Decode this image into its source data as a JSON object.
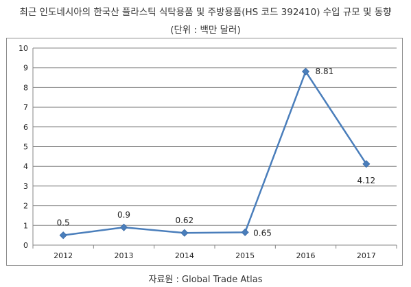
{
  "header": {
    "title": "최근 인도네시아의 한국산 플라스틱 식탁용품 및 주방용품(HS 코드 392410) 수입 규모 및 동향",
    "subtitle": "(단위 : 백만 달러)"
  },
  "footer": {
    "source": "자료원 : Global Trade Atlas"
  },
  "chart_data": {
    "type": "line",
    "title": "최근 인도네시아의 한국산 플라스틱 식탁용품 및 주방용품(HS 코드 392410) 수입 규모 및 동향",
    "subtitle": "(단위 : 백만 달러)",
    "categories": [
      "2012",
      "2013",
      "2014",
      "2015",
      "2016",
      "2017"
    ],
    "series": [
      {
        "values": [
          0.5,
          0.9,
          0.62,
          0.65,
          8.81,
          4.12
        ],
        "labels": [
          "0.5",
          "0.9",
          "0.62",
          "0.65",
          "8.81",
          "4.12"
        ],
        "color": "#4a7ebb"
      }
    ],
    "ylim": [
      0,
      10
    ],
    "yticks": [
      0,
      1,
      2,
      3,
      4,
      5,
      6,
      7,
      8,
      9,
      10
    ],
    "xlabel": "",
    "ylabel": "",
    "grid": true,
    "legend": "none",
    "gridColor": "#868686",
    "markerShape": "diamond"
  }
}
